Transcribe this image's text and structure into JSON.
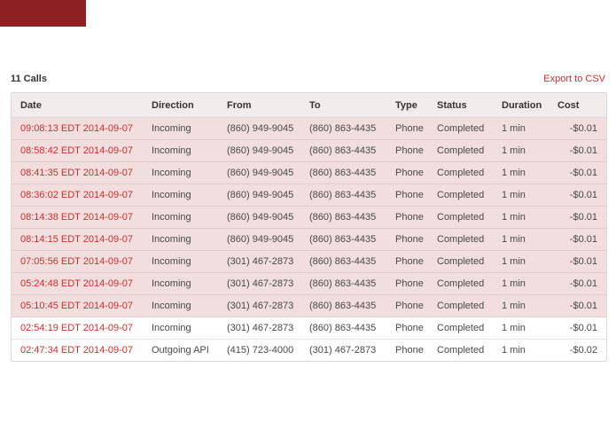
{
  "colors": {
    "brand_red": "#8b2121",
    "accent_red": "#c9302c",
    "row_highlight": "#f2dede",
    "header_bg": "#f3ecec"
  },
  "toolbar": {
    "calls_count_label": "11 Calls",
    "export_link_label": "Export to CSV"
  },
  "table": {
    "columns": [
      "Date",
      "Direction",
      "From",
      "To",
      "Type",
      "Status",
      "Duration",
      "Cost"
    ],
    "rows": [
      {
        "date": "09:08:13 EDT 2014-09-07",
        "direction": "Incoming",
        "from": "(860) 949-9045",
        "to": "(860) 863-4435",
        "type": "Phone",
        "status": "Completed",
        "duration": "1 min",
        "cost": "-$0.01",
        "highlight": true
      },
      {
        "date": "08:58:42 EDT 2014-09-07",
        "direction": "Incoming",
        "from": "(860) 949-9045",
        "to": "(860) 863-4435",
        "type": "Phone",
        "status": "Completed",
        "duration": "1 min",
        "cost": "-$0.01",
        "highlight": true
      },
      {
        "date": "08:41:35 EDT 2014-09-07",
        "direction": "Incoming",
        "from": "(860) 949-9045",
        "to": "(860) 863-4435",
        "type": "Phone",
        "status": "Completed",
        "duration": "1 min",
        "cost": "-$0.01",
        "highlight": true
      },
      {
        "date": "08:36:02 EDT 2014-09-07",
        "direction": "Incoming",
        "from": "(860) 949-9045",
        "to": "(860) 863-4435",
        "type": "Phone",
        "status": "Completed",
        "duration": "1 min",
        "cost": "-$0.01",
        "highlight": true
      },
      {
        "date": "08:14:38 EDT 2014-09-07",
        "direction": "Incoming",
        "from": "(860) 949-9045",
        "to": "(860) 863-4435",
        "type": "Phone",
        "status": "Completed",
        "duration": "1 min",
        "cost": "-$0.01",
        "highlight": true
      },
      {
        "date": "08:14:15 EDT 2014-09-07",
        "direction": "Incoming",
        "from": "(860) 949-9045",
        "to": "(860) 863-4435",
        "type": "Phone",
        "status": "Completed",
        "duration": "1 min",
        "cost": "-$0.01",
        "highlight": true
      },
      {
        "date": "07:05:56 EDT 2014-09-07",
        "direction": "Incoming",
        "from": "(301) 467-2873",
        "to": "(860) 863-4435",
        "type": "Phone",
        "status": "Completed",
        "duration": "1 min",
        "cost": "-$0.01",
        "highlight": true
      },
      {
        "date": "05:24:48 EDT 2014-09-07",
        "direction": "Incoming",
        "from": "(301) 467-2873",
        "to": "(860) 863-4435",
        "type": "Phone",
        "status": "Completed",
        "duration": "1 min",
        "cost": "-$0.01",
        "highlight": true
      },
      {
        "date": "05:10:45 EDT 2014-09-07",
        "direction": "Incoming",
        "from": "(301) 467-2873",
        "to": "(860) 863-4435",
        "type": "Phone",
        "status": "Completed",
        "duration": "1 min",
        "cost": "-$0.01",
        "highlight": true
      },
      {
        "date": "02:54:19 EDT 2014-09-07",
        "direction": "Incoming",
        "from": "(301) 467-2873",
        "to": "(860) 863-4435",
        "type": "Phone",
        "status": "Completed",
        "duration": "1 min",
        "cost": "-$0.01",
        "highlight": false
      },
      {
        "date": "02:47:34 EDT 2014-09-07",
        "direction": "Outgoing API",
        "from": "(415) 723-4000",
        "to": "(301) 467-2873",
        "type": "Phone",
        "status": "Completed",
        "duration": "1 min",
        "cost": "-$0.02",
        "highlight": false
      }
    ]
  }
}
